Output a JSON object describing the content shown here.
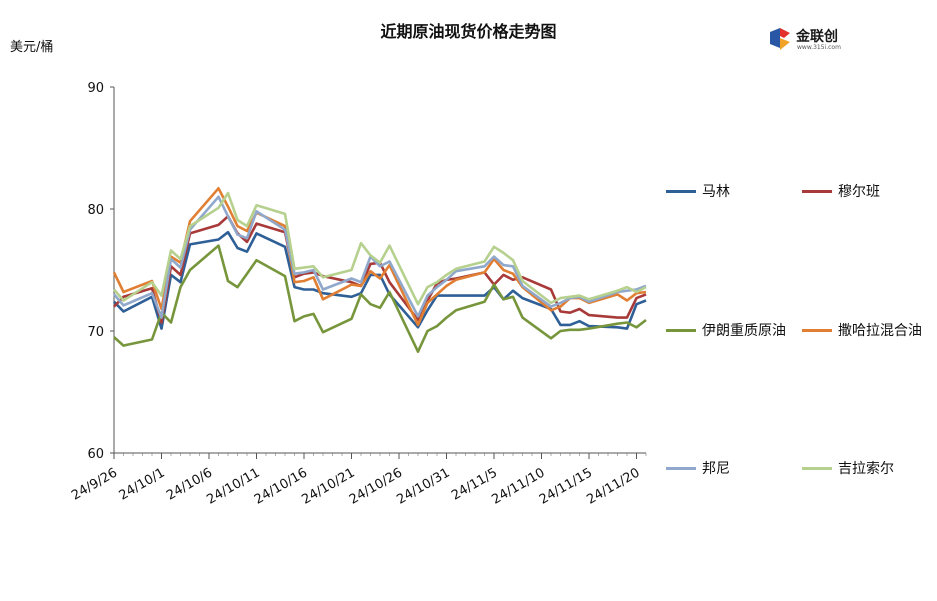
{
  "chart_data": {
    "type": "line",
    "title": "近期原油现货价格走势图",
    "unit": "美元/桶",
    "ylim": [
      60,
      90
    ],
    "yticks": [
      60,
      70,
      80,
      90
    ],
    "grid": false,
    "legend_position": "right",
    "xrange": [
      "2024-09-26",
      "2024-11-21"
    ],
    "xtick_labels": [
      "24/9/26",
      "24/10/1",
      "24/10/6",
      "24/10/11",
      "24/10/16",
      "24/10/21",
      "24/10/26",
      "24/10/31",
      "24/11/5",
      "24/11/10",
      "24/11/15",
      "24/11/20"
    ],
    "xtick_dates": [
      "2024-09-26",
      "2024-10-01",
      "2024-10-06",
      "2024-10-11",
      "2024-10-16",
      "2024-10-21",
      "2024-10-26",
      "2024-10-31",
      "2024-11-05",
      "2024-11-10",
      "2024-11-15",
      "2024-11-20"
    ],
    "x": [
      "2024-09-26",
      "2024-09-27",
      "2024-09-30",
      "2024-10-01",
      "2024-10-02",
      "2024-10-03",
      "2024-10-04",
      "2024-10-07",
      "2024-10-08",
      "2024-10-09",
      "2024-10-10",
      "2024-10-11",
      "2024-10-14",
      "2024-10-15",
      "2024-10-16",
      "2024-10-17",
      "2024-10-18",
      "2024-10-21",
      "2024-10-22",
      "2024-10-23",
      "2024-10-24",
      "2024-10-25",
      "2024-10-28",
      "2024-10-29",
      "2024-10-30",
      "2024-10-31",
      "2024-11-01",
      "2024-11-04",
      "2024-11-05",
      "2024-11-06",
      "2024-11-07",
      "2024-11-08",
      "2024-11-11",
      "2024-11-12",
      "2024-11-13",
      "2024-11-14",
      "2024-11-15",
      "2024-11-18",
      "2024-11-19",
      "2024-11-20",
      "2024-11-21"
    ],
    "series": [
      {
        "name": "马林",
        "color": "#2e5f96",
        "values": [
          72.4,
          71.6,
          72.8,
          70.2,
          74.6,
          74.0,
          77.1,
          77.5,
          78.1,
          76.8,
          76.5,
          78.0,
          76.9,
          73.6,
          73.4,
          73.4,
          73.1,
          72.8,
          73.1,
          74.6,
          74.6,
          73.0,
          70.3,
          71.7,
          72.9,
          72.9,
          72.9,
          72.9,
          73.6,
          72.6,
          73.3,
          72.7,
          71.8,
          70.5,
          70.5,
          70.8,
          70.4,
          70.3,
          70.2,
          72.2,
          72.5
        ]
      },
      {
        "name": "穆尔班",
        "color": "#a83b39",
        "values": [
          72.0,
          72.8,
          73.5,
          70.7,
          75.3,
          74.6,
          78.0,
          78.7,
          79.4,
          78.0,
          77.3,
          78.8,
          78.1,
          74.4,
          74.7,
          74.8,
          74.5,
          74.0,
          73.7,
          75.5,
          75.6,
          74.0,
          70.9,
          72.5,
          73.9,
          74.2,
          74.3,
          74.8,
          73.8,
          74.6,
          74.2,
          74.4,
          73.4,
          71.6,
          71.5,
          71.8,
          71.3,
          71.1,
          71.1,
          72.7,
          73.0
        ]
      },
      {
        "name": "伊朗重质原油",
        "color": "#77963c",
        "values": [
          69.5,
          68.8,
          69.3,
          71.5,
          70.7,
          73.6,
          75.0,
          77.0,
          74.1,
          73.6,
          74.7,
          75.8,
          74.5,
          70.8,
          71.2,
          71.4,
          69.9,
          71.0,
          73.0,
          72.2,
          71.9,
          73.2,
          68.3,
          70.0,
          70.4,
          71.1,
          71.7,
          72.4,
          73.8,
          72.6,
          72.8,
          71.1,
          69.4,
          70.0,
          70.1,
          70.1,
          70.2,
          70.6,
          70.7,
          70.3,
          70.9
        ]
      },
      {
        "name": "撒哈拉混合油",
        "color": "#e07f33",
        "values": [
          74.8,
          73.2,
          74.1,
          71.8,
          76.1,
          75.6,
          79.0,
          81.7,
          80.2,
          78.6,
          78.2,
          79.7,
          78.6,
          74.0,
          74.1,
          74.4,
          72.6,
          73.8,
          73.7,
          74.9,
          74.3,
          75.4,
          70.5,
          72.3,
          73.0,
          73.7,
          74.2,
          74.8,
          75.9,
          75.0,
          74.7,
          73.6,
          71.7,
          72.0,
          72.7,
          72.7,
          72.3,
          73.0,
          72.5,
          73.1,
          73.2
        ]
      },
      {
        "name": "邦尼",
        "color": "#8fa8cb",
        "values": [
          73.0,
          72.1,
          73.1,
          71.1,
          75.9,
          75.2,
          78.3,
          81.0,
          79.4,
          77.9,
          77.6,
          79.8,
          78.3,
          74.7,
          74.8,
          75.0,
          73.4,
          74.3,
          74.0,
          76.1,
          75.3,
          75.7,
          71.2,
          72.9,
          73.6,
          74.2,
          74.9,
          75.3,
          76.1,
          75.4,
          75.3,
          73.7,
          72.0,
          72.3,
          72.7,
          72.8,
          72.4,
          73.2,
          73.3,
          73.4,
          73.7
        ]
      },
      {
        "name": "吉拉索尔",
        "color": "#b6d08e",
        "values": [
          73.4,
          72.5,
          74.0,
          72.9,
          76.6,
          75.9,
          78.6,
          80.1,
          81.3,
          79.1,
          78.6,
          80.3,
          79.6,
          75.1,
          75.2,
          75.3,
          74.4,
          75.0,
          77.2,
          76.2,
          75.6,
          77.0,
          72.2,
          73.6,
          74.0,
          74.6,
          75.1,
          75.7,
          76.9,
          76.4,
          75.8,
          74.1,
          72.3,
          72.7,
          72.8,
          72.9,
          72.6,
          73.3,
          73.6,
          73.2,
          73.6
        ]
      }
    ]
  },
  "logo": {
    "name": "金联创",
    "url": "www.315i.com"
  }
}
